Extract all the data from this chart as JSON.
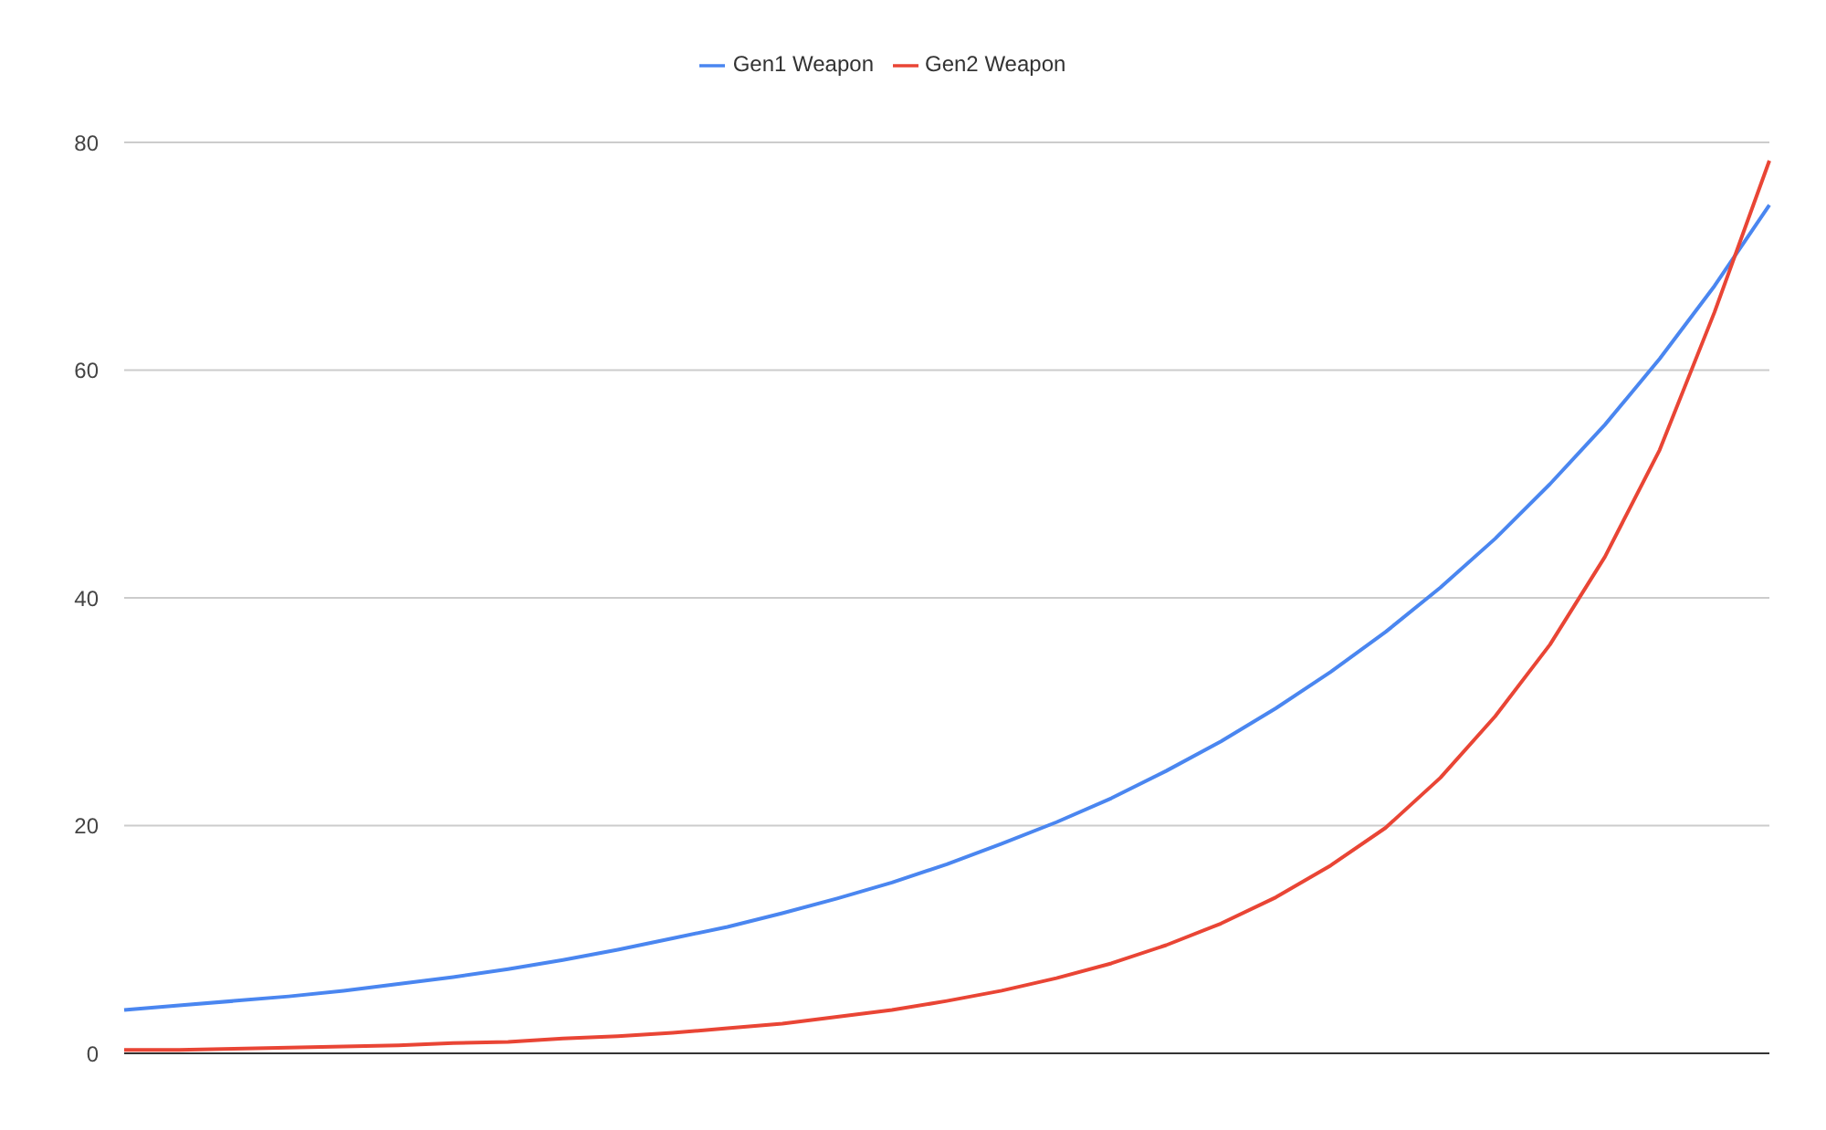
{
  "chart_data": {
    "type": "line",
    "categories": [
      null,
      null,
      null,
      null,
      null,
      null,
      null,
      null,
      null,
      null,
      null,
      null,
      null,
      null,
      null,
      null,
      null,
      null,
      null,
      null,
      null,
      null,
      null,
      null,
      null,
      null,
      null,
      null,
      null,
      null,
      null
    ],
    "series": [
      {
        "name": "Gen1 Weapon",
        "color": "#4a86f0",
        "values": [
          3.8,
          4.2,
          4.6,
          5.0,
          5.5,
          6.1,
          6.7,
          7.4,
          8.2,
          9.1,
          10.1,
          11.1,
          12.3,
          13.6,
          15.0,
          16.6,
          18.4,
          20.3,
          22.4,
          24.8,
          27.4,
          30.3,
          33.5,
          37.0,
          40.9,
          45.2,
          50.0,
          55.2,
          61.0,
          67.4,
          74.5
        ]
      },
      {
        "name": "Gen2 Weapon",
        "color": "#e94535",
        "values": [
          0.3,
          0.3,
          0.4,
          0.5,
          0.6,
          0.7,
          0.9,
          1.0,
          1.3,
          1.5,
          1.8,
          2.2,
          2.6,
          3.2,
          3.8,
          4.6,
          5.5,
          6.6,
          7.9,
          9.5,
          11.4,
          13.7,
          16.5,
          19.8,
          24.2,
          29.6,
          35.9,
          43.6,
          53,
          65.1,
          78.4
        ]
      }
    ],
    "ylim": [
      0,
      80
    ],
    "yticks": [
      0,
      20,
      40,
      60,
      80
    ],
    "grid": "y",
    "legend": "top",
    "marker": "none",
    "line_style": "solid"
  }
}
